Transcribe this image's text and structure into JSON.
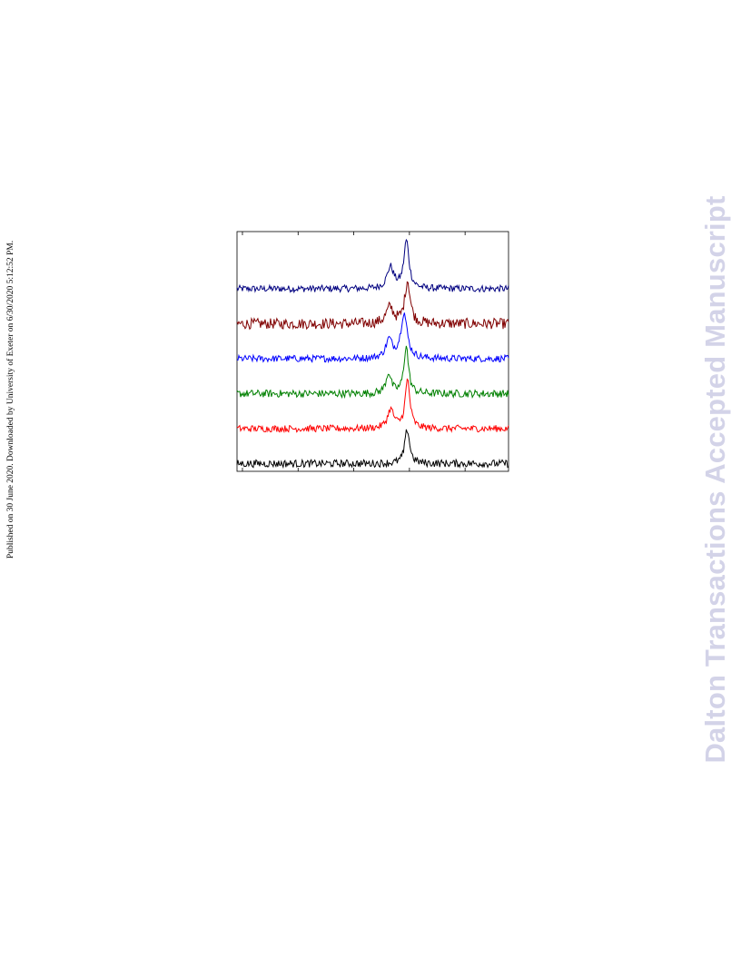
{
  "margin_note": "Published on 30 June 2020. Downloaded by University of Exeter on 6/30/2020 5:12:52 PM.",
  "watermark": "Dalton Transactions Accepted Manuscript",
  "chart_data": {
    "type": "line",
    "title": "",
    "xlabel": "",
    "ylabel": "",
    "xlim": [
      0,
      100
    ],
    "x_ticks": [
      2,
      22.5,
      43,
      63.5,
      84
    ],
    "grid": false,
    "legend": "none",
    "series": [
      {
        "color": "#000080",
        "baseline": 5,
        "noise": 0.9,
        "peaks": [
          {
            "x": 56.5,
            "h": 5.6,
            "w": 2.1
          },
          {
            "x": 62.4,
            "h": 12.5,
            "w": 1.6
          }
        ]
      },
      {
        "color": "#800000",
        "baseline": 6,
        "noise": 1.4,
        "peaks": [
          {
            "x": 56.3,
            "h": 4.2,
            "w": 2.3
          },
          {
            "x": 62.8,
            "h": 11.2,
            "w": 1.7
          }
        ]
      },
      {
        "color": "#0000ff",
        "baseline": 7,
        "noise": 0.9,
        "peaks": [
          {
            "x": 56.0,
            "h": 4.8,
            "w": 2.0
          },
          {
            "x": 61.5,
            "h": 11.8,
            "w": 2.0
          }
        ]
      },
      {
        "color": "#008000",
        "baseline": 7,
        "noise": 1.0,
        "peaks": [
          {
            "x": 55.8,
            "h": 5.4,
            "w": 1.6
          },
          {
            "x": 62.3,
            "h": 12.5,
            "w": 1.4
          }
        ]
      },
      {
        "color": "#ff0000",
        "baseline": 6,
        "noise": 0.9,
        "peaks": [
          {
            "x": 56.6,
            "h": 4.9,
            "w": 2.0
          },
          {
            "x": 62.8,
            "h": 12.6,
            "w": 1.5
          }
        ]
      },
      {
        "color": "#000000",
        "baseline": 6,
        "noise": 1.0,
        "peaks": [
          {
            "x": 62.7,
            "h": 9.0,
            "w": 1.5
          }
        ]
      }
    ]
  }
}
